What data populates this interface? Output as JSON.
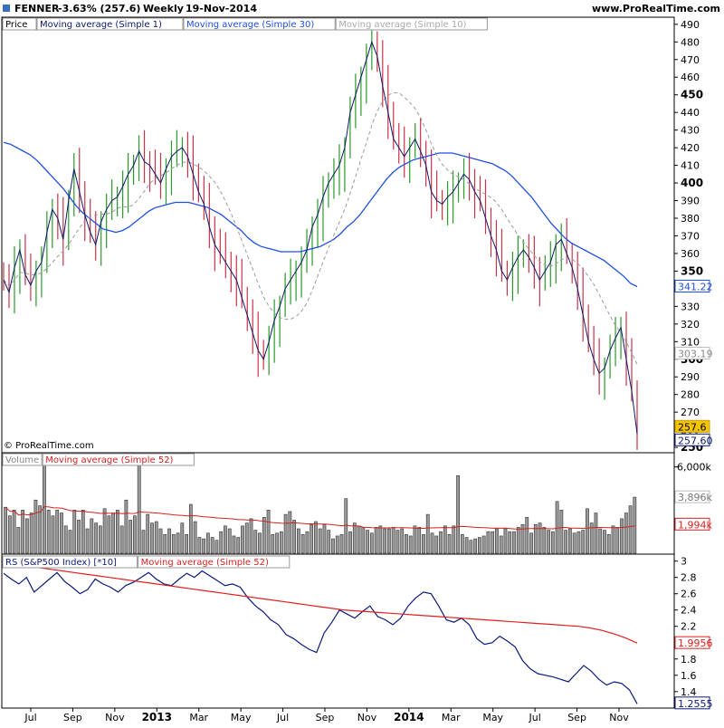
{
  "header": {
    "symbol": "FENNER",
    "change": "-3.63% (257.6)",
    "period": "Weekly",
    "date": "19-Nov-2014",
    "site": "www.ProRealTime.com",
    "copyright": "© ProRealTime.com"
  },
  "chart_data": [
    {
      "type": "candlestick",
      "panel": "price",
      "legend": [
        "Price",
        "Moving average (Simple 1)",
        "Moving average (Simple 30)",
        "Moving average (Simple 10)"
      ],
      "ylim": [
        248,
        493
      ],
      "y_ticks": [
        250,
        260,
        270,
        280,
        290,
        300,
        310,
        320,
        330,
        340,
        350,
        360,
        370,
        380,
        390,
        400,
        410,
        420,
        430,
        440,
        450,
        460,
        470,
        480,
        490
      ],
      "y_ticks_bold": [
        250,
        300,
        350,
        400,
        450
      ],
      "x_labels": [
        "Jul",
        "Sep",
        "Nov",
        "2013",
        "Mar",
        "May",
        "Jul",
        "Sep",
        "Nov",
        "2014",
        "Mar",
        "May",
        "Jul",
        "Sep",
        "Nov"
      ],
      "x_labels_bold": [
        "2013",
        "2014"
      ],
      "colors": {
        "up": "#2a9a2a",
        "down": "#c8334a",
        "ma1": "#0b1a6b",
        "ma30": "#1f4fe6",
        "ma10": "#9a9a9a"
      },
      "last_price": "257.6",
      "ma_labels": {
        "ma30": "341.22",
        "ma10": "303.19",
        "ma1": "257.60"
      },
      "close": [
        345,
        338,
        352,
        362,
        348,
        342,
        350,
        355,
        372,
        385,
        380,
        368,
        390,
        408,
        395,
        382,
        372,
        365,
        378,
        385,
        390,
        392,
        398,
        405,
        410,
        418,
        412,
        410,
        405,
        400,
        408,
        415,
        418,
        420,
        415,
        405,
        395,
        388,
        375,
        365,
        360,
        355,
        350,
        345,
        335,
        325,
        315,
        305,
        300,
        310,
        322,
        330,
        340,
        345,
        350,
        355,
        362,
        375,
        382,
        392,
        400,
        405,
        410,
        420,
        440,
        450,
        460,
        470,
        480,
        472,
        455,
        440,
        425,
        420,
        415,
        420,
        425,
        418,
        410,
        395,
        390,
        388,
        392,
        395,
        400,
        405,
        402,
        395,
        390,
        380,
        370,
        362,
        350,
        345,
        352,
        358,
        362,
        358,
        352,
        345,
        350,
        355,
        365,
        368,
        360,
        352,
        340,
        325,
        310,
        300,
        292,
        295,
        305,
        312,
        318,
        300,
        282,
        257.6
      ],
      "ma30": [
        423,
        422,
        420,
        418,
        416,
        413,
        409,
        405,
        401,
        397,
        392,
        387,
        383,
        380,
        377,
        374,
        373,
        372,
        373,
        375,
        378,
        381,
        384,
        386,
        387,
        388,
        389,
        389,
        389,
        388,
        387,
        386,
        384,
        382,
        379,
        376,
        373,
        369,
        366,
        364,
        363,
        362,
        361,
        361,
        361,
        361,
        362,
        363,
        364,
        366,
        368,
        371,
        375,
        378,
        382,
        387,
        392,
        397,
        402,
        406,
        409,
        411,
        413,
        414,
        415,
        416,
        417,
        417,
        417,
        416,
        415,
        414,
        413,
        412,
        411,
        409,
        407,
        404,
        400,
        396,
        392,
        387,
        382,
        377,
        373,
        369,
        366,
        364,
        362,
        360,
        358,
        356,
        353,
        350,
        347,
        343,
        341.22
      ]
    },
    {
      "type": "bar",
      "panel": "volume",
      "legend": [
        "Volume",
        "Moving average (Simple 52)"
      ],
      "y_ticks": [
        "6,000k"
      ],
      "current_volume": "3,896k",
      "ma52_value": "1,994k",
      "color": "#8a8a8a",
      "ma_color": "#d62020",
      "values_k": [
        3200,
        2600,
        3000,
        1800,
        3000,
        2400,
        2800,
        3700,
        3300,
        6600,
        3000,
        2600,
        3000,
        2800,
        1900,
        1600,
        3000,
        2300,
        3000,
        1700,
        2400,
        2100,
        1900,
        3100,
        2600,
        2800,
        3000,
        1900,
        3700,
        2300,
        2600,
        6600,
        1600,
        2700,
        2100,
        2200,
        1700,
        1300,
        1700,
        1300,
        1400,
        2100,
        1300,
        3400,
        2200,
        1100,
        1000,
        1400,
        1100,
        900,
        1500,
        1900,
        1700,
        1200,
        1100,
        1900,
        2100,
        2400,
        1600,
        1400,
        2500,
        3000,
        1300,
        1400,
        1500,
        2700,
        2900,
        2300,
        1700,
        1300,
        1500,
        2000,
        2200,
        1700,
        2000,
        1600,
        1000,
        1200,
        1300,
        3800,
        1500,
        2100,
        1900,
        1800,
        1600,
        1400,
        1800,
        1900,
        1700,
        1700,
        1800,
        1600,
        1700,
        1300,
        1200,
        1900,
        1800,
        1300,
        2700,
        1400,
        1200,
        1500,
        1900,
        1300,
        1900,
        5400,
        1300,
        1100,
        900,
        1000,
        1100,
        1200,
        1500,
        1500,
        1700,
        1200,
        1700,
        1500,
        1500,
        1800,
        2000,
        2500,
        1400,
        2000,
        2100,
        1800,
        1600,
        1500,
        3600,
        3000,
        1600,
        1700,
        1400,
        1500,
        1600,
        3100,
        2100,
        2800,
        1700,
        1600,
        1300,
        1900,
        1800,
        2400,
        2800,
        3300,
        3900
      ]
    },
    {
      "type": "line",
      "panel": "relative_strength",
      "legend": [
        "RS (S&P500 Index) [*10]",
        "Moving average (Simple 52)"
      ],
      "ylim": [
        1.22,
        3.03
      ],
      "y_ticks": [
        1.4,
        1.6,
        1.8,
        2,
        2.2,
        2.4,
        2.6,
        2.8,
        3
      ],
      "rs_value": "1.2555",
      "ma52_value": "1.9956",
      "colors": {
        "rs": "#0b1a7a",
        "ma": "#e02020"
      },
      "rs": [
        2.85,
        2.78,
        2.72,
        2.8,
        2.62,
        2.7,
        2.78,
        2.86,
        2.75,
        2.68,
        2.6,
        2.65,
        2.78,
        2.72,
        2.68,
        2.62,
        2.7,
        2.74,
        2.8,
        2.86,
        2.78,
        2.72,
        2.7,
        2.78,
        2.85,
        2.8,
        2.88,
        2.82,
        2.76,
        2.7,
        2.72,
        2.68,
        2.55,
        2.45,
        2.38,
        2.28,
        2.22,
        2.1,
        2.05,
        1.98,
        1.92,
        1.88,
        2.12,
        2.25,
        2.4,
        2.35,
        2.3,
        2.38,
        2.45,
        2.32,
        2.28,
        2.22,
        2.3,
        2.45,
        2.55,
        2.62,
        2.6,
        2.45,
        2.28,
        2.25,
        2.3,
        2.22,
        2.05,
        1.98,
        2.0,
        2.08,
        2.02,
        1.95,
        1.78,
        1.68,
        1.62,
        1.6,
        1.58,
        1.55,
        1.52,
        1.62,
        1.72,
        1.65,
        1.55,
        1.48,
        1.52,
        1.5,
        1.42,
        1.25
      ],
      "ma52": [
        2.98,
        2.96,
        2.94,
        2.92,
        2.9,
        2.88,
        2.86,
        2.84,
        2.82,
        2.8,
        2.78,
        2.76,
        2.74,
        2.72,
        2.7,
        2.68,
        2.66,
        2.64,
        2.62,
        2.6,
        2.58,
        2.56,
        2.54,
        2.52,
        2.5,
        2.48,
        2.46,
        2.44,
        2.42,
        2.4,
        2.39,
        2.38,
        2.37,
        2.36,
        2.35,
        2.34,
        2.33,
        2.32,
        2.31,
        2.3,
        2.29,
        2.28,
        2.27,
        2.26,
        2.25,
        2.24,
        2.23,
        2.22,
        2.21,
        2.2,
        2.18,
        2.15,
        2.11,
        2.06,
        1.9956
      ]
    }
  ]
}
